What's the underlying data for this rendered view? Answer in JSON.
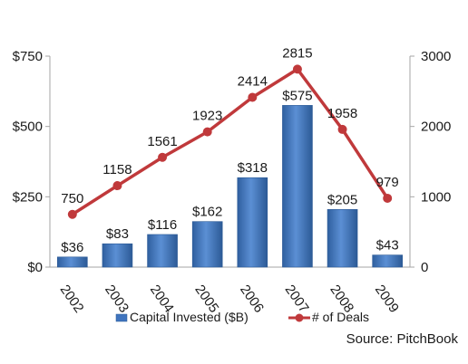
{
  "chart_data": {
    "type": "bar+line",
    "categories": [
      "2002",
      "2003",
      "2004",
      "2005",
      "2006",
      "2007",
      "2008",
      "2009"
    ],
    "series": [
      {
        "name": "Capital Invested ($B)",
        "type": "bar",
        "axis": "left",
        "values": [
          36,
          83,
          116,
          162,
          318,
          575,
          205,
          43
        ],
        "labels": [
          "$36",
          "$83",
          "$116",
          "$162",
          "$318",
          "$575",
          "$205",
          "$43"
        ],
        "color": "#3f74be"
      },
      {
        "name": "# of Deals",
        "type": "line",
        "axis": "right",
        "values": [
          750,
          1158,
          1561,
          1923,
          2414,
          2815,
          1958,
          979
        ],
        "labels": [
          "750",
          "1158",
          "1561",
          "1923",
          "2414",
          "2815",
          "1958",
          "979"
        ],
        "color": "#c0393b"
      }
    ],
    "y_left": {
      "ylim": [
        0,
        750
      ],
      "ticks": [
        0,
        250,
        500,
        750
      ],
      "tick_labels": [
        "$0",
        "$250",
        "$500",
        "$750"
      ]
    },
    "y_right": {
      "ylim": [
        0,
        3000
      ],
      "ticks": [
        0,
        1000,
        2000,
        3000
      ],
      "tick_labels": [
        "0",
        "1000",
        "2000",
        "3000"
      ]
    },
    "grid": false,
    "legend": "bottom",
    "source": "Source: PitchBook"
  }
}
